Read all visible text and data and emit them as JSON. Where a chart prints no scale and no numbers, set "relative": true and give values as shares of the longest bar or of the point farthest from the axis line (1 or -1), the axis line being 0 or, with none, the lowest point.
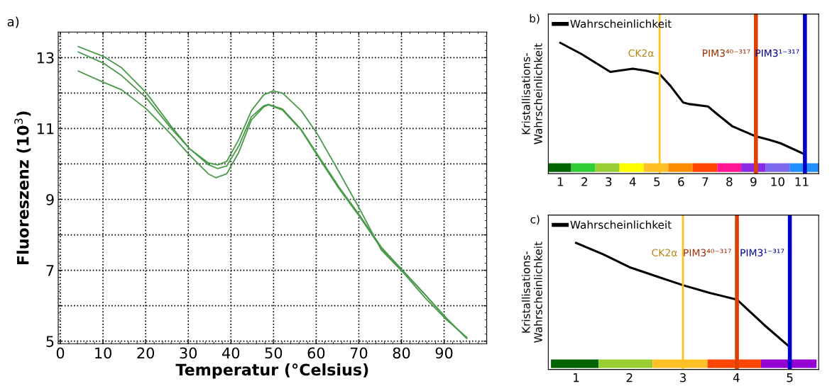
{
  "chart_data": [
    {
      "type": "line",
      "title": "a)",
      "xlabel": "Temperatur (°Celsius)",
      "ylabel": "Fluoreszenz (10$^{3}$)",
      "xlim": [
        -0.5,
        100
      ],
      "ylim": [
        4.93,
        13.72
      ],
      "xticks": [
        0,
        10,
        20,
        30,
        40,
        50,
        60,
        70,
        80,
        90
      ],
      "yticks": [
        5,
        {
          "value": 6,
          "label": null
        },
        7,
        {
          "value": 8,
          "label": null
        },
        9,
        {
          "value": 10,
          "label": null
        },
        11,
        {
          "value": 12,
          "label": null
        },
        13
      ],
      "grid": true,
      "marker": "none",
      "line_style": "solid",
      "series": [
        {
          "color": "#4a9a4a",
          "x": [
            4.2,
            10,
            14.4,
            20.2,
            26,
            30.3,
            34.7,
            36.9,
            39,
            41.9,
            44.8,
            47.7,
            49.9,
            52.1,
            56.5,
            60.1,
            64.4,
            70.2,
            75.3,
            80.4,
            85.5,
            90.6,
            95.3
          ],
          "values": [
            13.31,
            13.04,
            12.71,
            12.0,
            11.06,
            10.43,
            10.03,
            9.97,
            10.07,
            10.7,
            11.5,
            11.95,
            12.06,
            12.0,
            11.5,
            10.88,
            9.98,
            8.73,
            7.57,
            6.94,
            6.23,
            5.6,
            5.11
          ]
        },
        {
          "color": "#4a9a4a",
          "x": [
            4.2,
            10,
            14.4,
            20.2,
            26,
            30.3,
            34.7,
            36.9,
            39,
            41.9,
            44.8,
            47.7,
            48.8,
            52.1,
            56.5,
            60.9,
            65.3,
            70.2,
            75.3,
            80.4,
            85.5,
            90.6,
            95.3
          ],
          "values": [
            13.16,
            12.85,
            12.49,
            11.86,
            11.0,
            10.43,
            9.98,
            9.87,
            9.94,
            10.52,
            11.33,
            11.64,
            11.68,
            11.55,
            10.97,
            10.16,
            9.36,
            8.55,
            7.65,
            6.98,
            6.32,
            5.64,
            5.08
          ]
        },
        {
          "color": "#4a9a4a",
          "x": [
            4.2,
            10,
            14.4,
            20.2,
            26,
            30.3,
            34.7,
            36.5,
            39,
            41.9,
            44.8,
            47.7,
            48.8,
            52.1,
            56.5,
            60.9,
            65.3,
            70.2,
            75.3,
            80.4,
            85.5,
            90.6,
            95.3
          ],
          "values": [
            12.62,
            12.31,
            12.09,
            11.55,
            10.83,
            10.25,
            9.72,
            9.61,
            9.72,
            10.34,
            11.24,
            11.61,
            11.67,
            11.52,
            10.95,
            10.12,
            9.31,
            8.51,
            7.61,
            6.98,
            6.32,
            5.64,
            5.08
          ]
        }
      ]
    },
    {
      "type": "line",
      "title": "b)",
      "ylabel": "Kristallisations-\nWahrscheinlichkeit",
      "relative": true,
      "tick_labels": "x",
      "xlim": [
        0.5,
        11.7
      ],
      "xticks": [
        1,
        2,
        3,
        4,
        5,
        6,
        7,
        8,
        9,
        10,
        11
      ],
      "legend": "top left",
      "marker": "none",
      "line_style": "solid",
      "series": [
        {
          "name": "Wahrscheinlichkeit",
          "color": "#000000",
          "x": [
            1,
            1.86,
            3.07,
            4.0,
            4.58,
            5.11,
            5.55,
            6.09,
            6.33,
            7.11,
            7.5,
            8.13,
            9.05,
            9.64,
            10.12,
            11.05
          ],
          "values": [
            1.0,
            0.916,
            0.778,
            0.802,
            0.786,
            0.762,
            0.673,
            0.543,
            0.532,
            0.514,
            0.454,
            0.361,
            0.288,
            0.259,
            0.232,
            0.154
          ]
        }
      ],
      "ref_lines": [
        {
          "axis": "x",
          "value": 5.11,
          "label": "CK2α",
          "color": "#ffc020"
        },
        {
          "axis": "x",
          "value": 9.1,
          "label": "PIM3⁴⁰⁻³¹⁷",
          "color": "#dd4000"
        },
        {
          "axis": "x",
          "value": 11.13,
          "label": "PIM3¹⁻³¹⁷",
          "color": "#0000cc"
        }
      ],
      "bands": [
        {
          "axis": "x",
          "from": 0.5,
          "to": 1.45,
          "color": "#006400"
        },
        {
          "axis": "x",
          "from": 1.45,
          "to": 2.45,
          "color": "#32cd32"
        },
        {
          "axis": "x",
          "from": 2.45,
          "to": 3.45,
          "color": "#9acd32"
        },
        {
          "axis": "x",
          "from": 3.45,
          "to": 4.45,
          "color": "#ffff00"
        },
        {
          "axis": "x",
          "from": 4.45,
          "to": 5.47,
          "color": "#ffc125"
        },
        {
          "axis": "x",
          "from": 5.47,
          "to": 6.48,
          "color": "#ff8c00"
        },
        {
          "axis": "x",
          "from": 6.48,
          "to": 7.5,
          "color": "#ff4500"
        },
        {
          "axis": "x",
          "from": 7.5,
          "to": 8.49,
          "color": "#ff1493"
        },
        {
          "axis": "x",
          "from": 8.49,
          "to": 9.49,
          "color": "#8a2be2"
        },
        {
          "axis": "x",
          "from": 9.49,
          "to": 10.51,
          "color": "#7b68ee"
        },
        {
          "axis": "x",
          "from": 10.51,
          "to": 11.7,
          "color": "#1e90ff"
        }
      ]
    },
    {
      "type": "line",
      "title": "c)",
      "ylabel": "Kristallisations-\nWahrscheinlichkeit",
      "relative": true,
      "tick_labels": "x",
      "xlim": [
        0.48,
        5.54
      ],
      "xticks": [
        1,
        2,
        3,
        4,
        5
      ],
      "legend": "top left",
      "marker": "none",
      "line_style": "solid",
      "series": [
        {
          "name": "Wahrscheinlichkeit",
          "color": "#000000",
          "x": [
            1,
            1.51,
            2,
            2.48,
            3,
            3.5,
            4.01,
            4.52,
            4.99
          ],
          "values": [
            1.0,
            0.909,
            0.808,
            0.739,
            0.666,
            0.605,
            0.552,
            0.352,
            0.181
          ]
        }
      ],
      "ref_lines": [
        {
          "axis": "x",
          "value": 3.0,
          "label": "CK2α",
          "color": "#ffc020"
        },
        {
          "axis": "x",
          "value": 4.01,
          "label": "PIM3⁴⁰⁻³¹⁷",
          "color": "#dd4000"
        },
        {
          "axis": "x",
          "value": 5.0,
          "label": "PIM3¹⁻³¹⁷",
          "color": "#0000cc"
        }
      ],
      "bands": [
        {
          "axis": "x",
          "from": 0.53,
          "to": 1.42,
          "color": "#006400"
        },
        {
          "axis": "x",
          "from": 1.42,
          "to": 2.43,
          "color": "#9acd32"
        },
        {
          "axis": "x",
          "from": 2.43,
          "to": 3.46,
          "color": "#ffc125"
        },
        {
          "axis": "x",
          "from": 3.46,
          "to": 4.46,
          "color": "#ff4500"
        },
        {
          "axis": "x",
          "from": 4.46,
          "to": 5.5,
          "color": "#9400d3"
        }
      ]
    }
  ]
}
